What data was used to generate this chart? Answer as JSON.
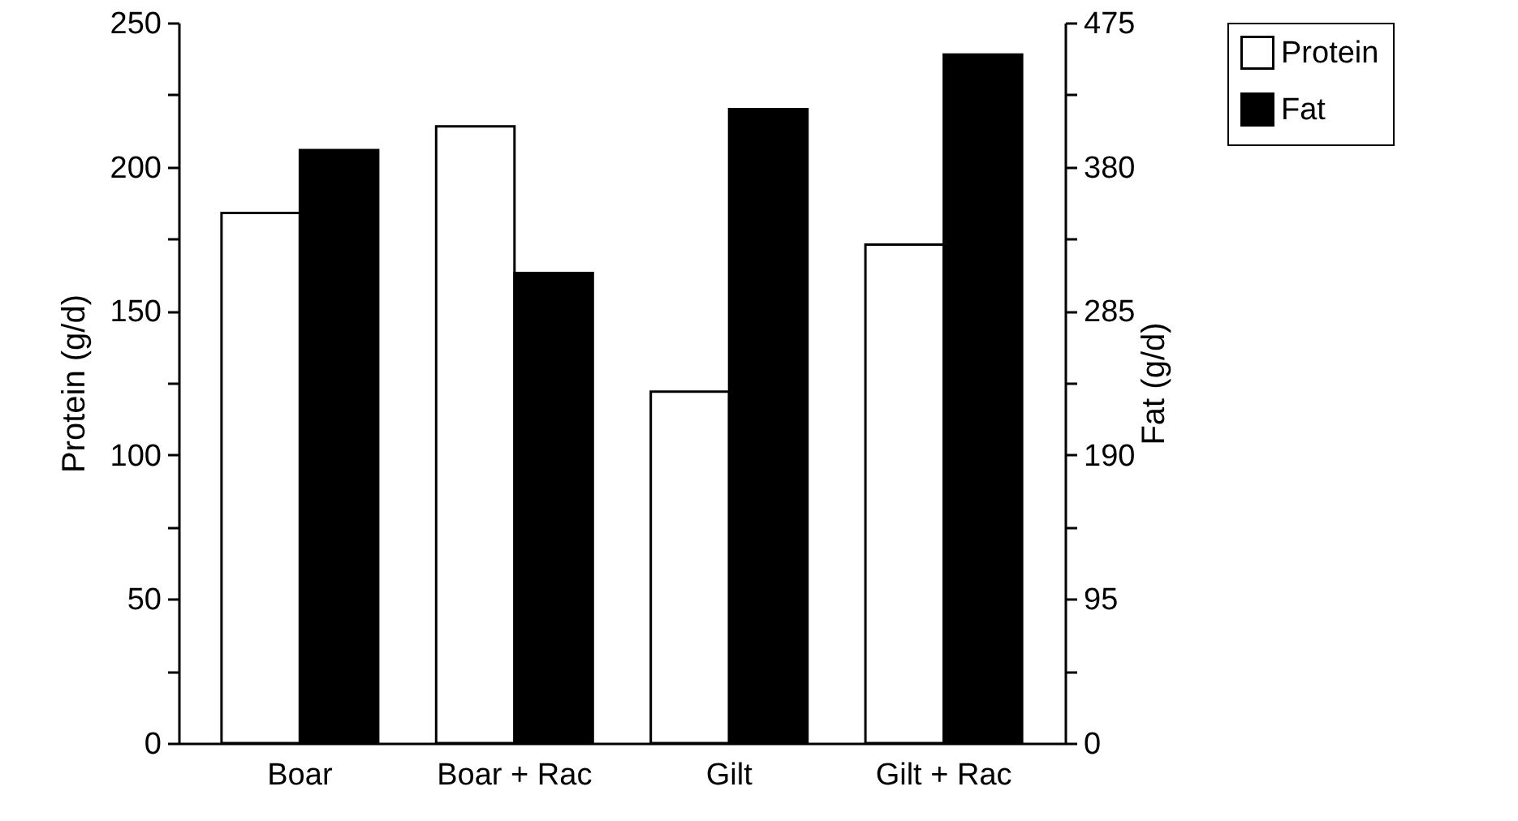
{
  "chart_data": {
    "type": "bar",
    "ylabel": "Protein (g/d)",
    "y2label": "Fat (g/d)",
    "categories": [
      "Boar",
      "Boar + Rac",
      "Gilt",
      "Gilt + Rac"
    ],
    "series": [
      {
        "name": "Protein",
        "color": "#ffffff",
        "values": [
          184,
          214,
          122,
          173
        ]
      },
      {
        "name": "Fat",
        "color": "#000000",
        "axis": "y2",
        "values": [
          391,
          310,
          418,
          454
        ]
      }
    ],
    "ylim": [
      0,
      250
    ],
    "yticks": [
      0,
      {
        "value": 25,
        "label": null
      },
      50,
      {
        "value": 75,
        "label": null
      },
      100,
      {
        "value": 125,
        "label": null
      },
      150,
      {
        "value": 175,
        "label": null
      },
      200,
      {
        "value": 225,
        "label": null
      },
      250
    ],
    "y2lim": [
      0,
      475
    ],
    "y2ticks": [
      0,
      {
        "value": 47.5,
        "label": null
      },
      95,
      {
        "value": 142.5,
        "label": null
      },
      190,
      {
        "value": 237.5,
        "label": null
      },
      285,
      {
        "value": 332.5,
        "label": null
      },
      380,
      {
        "value": 427.5,
        "label": null
      },
      475
    ],
    "legend": "top right",
    "grid": false
  }
}
